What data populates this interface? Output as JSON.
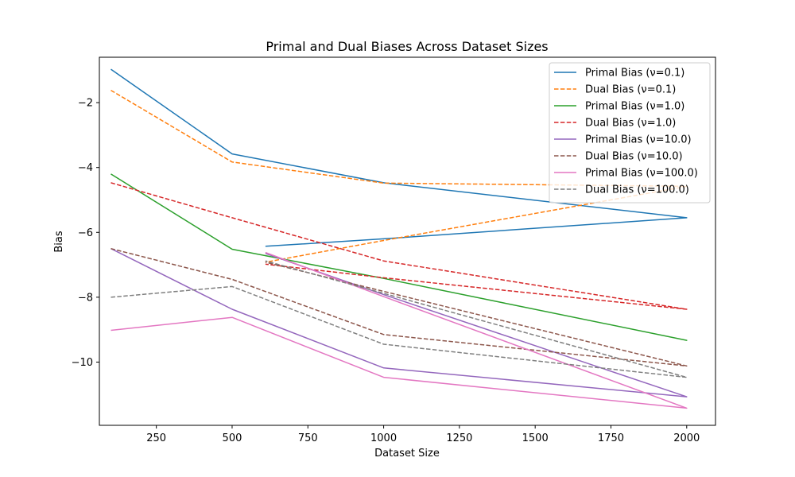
{
  "chart_data": {
    "type": "line",
    "title": "Primal and Dual Biases Across Dataset Sizes",
    "xlabel": "Dataset Size",
    "ylabel": "Bias",
    "xlim": [
      62,
      2095
    ],
    "ylim": [
      -11.95,
      -0.6
    ],
    "x_ticks": [
      250,
      500,
      750,
      1000,
      1250,
      1500,
      1750,
      2000
    ],
    "x_tick_labels": [
      "250",
      "500",
      "750",
      "1000",
      "1250",
      "1500",
      "1750",
      "2000"
    ],
    "y_ticks": [
      -10,
      -8,
      -6,
      -4,
      -2
    ],
    "y_tick_labels": [
      "−10",
      "−8",
      "−6",
      "−4",
      "−2"
    ],
    "grid": false,
    "legend_position": "top-right",
    "series": [
      {
        "name": "Primal Bias (ν=0.1)",
        "color": "#1f77b4",
        "dash": "solid",
        "points": [
          [
            100,
            -0.97
          ],
          [
            500,
            -3.58
          ],
          [
            1000,
            -4.47
          ],
          [
            2000,
            -5.55
          ],
          [
            1000,
            -6.2
          ],
          [
            610,
            -6.43
          ]
        ]
      },
      {
        "name": "Dual Bias (ν=0.1)",
        "color": "#ff7f0e",
        "dash": "dashed",
        "points": [
          [
            100,
            -1.62
          ],
          [
            500,
            -3.83
          ],
          [
            1000,
            -4.48
          ],
          [
            1700,
            -4.55
          ],
          [
            2000,
            -4.58
          ],
          [
            1000,
            -6.25
          ],
          [
            610,
            -6.92
          ]
        ]
      },
      {
        "name": "Primal Bias (ν=1.0)",
        "color": "#2ca02c",
        "dash": "solid",
        "points": [
          [
            100,
            -4.2
          ],
          [
            500,
            -6.52
          ],
          [
            1000,
            -7.42
          ],
          [
            2000,
            -9.33
          ],
          [
            1000,
            -7.42
          ],
          [
            610,
            -6.72
          ]
        ]
      },
      {
        "name": "Dual Bias (ν=1.0)",
        "color": "#d62728",
        "dash": "dashed",
        "points": [
          [
            100,
            -4.47
          ],
          [
            500,
            -5.55
          ],
          [
            1000,
            -6.88
          ],
          [
            2000,
            -8.37
          ],
          [
            1000,
            -7.4
          ],
          [
            610,
            -6.98
          ]
        ]
      },
      {
        "name": "Primal Bias (ν=10.0)",
        "color": "#9467bd",
        "dash": "solid",
        "points": [
          [
            100,
            -6.5
          ],
          [
            500,
            -8.37
          ],
          [
            1000,
            -10.18
          ],
          [
            2000,
            -11.07
          ],
          [
            1000,
            -7.92
          ],
          [
            610,
            -6.65
          ]
        ]
      },
      {
        "name": "Dual Bias (ν=10.0)",
        "color": "#8c564b",
        "dash": "dashed",
        "points": [
          [
            100,
            -6.5
          ],
          [
            500,
            -7.45
          ],
          [
            1000,
            -9.15
          ],
          [
            2000,
            -10.12
          ],
          [
            1000,
            -7.82
          ],
          [
            610,
            -6.92
          ]
        ]
      },
      {
        "name": "Primal Bias (ν=100.0)",
        "color": "#e377c2",
        "dash": "solid",
        "points": [
          [
            100,
            -9.02
          ],
          [
            500,
            -8.62
          ],
          [
            1000,
            -10.47
          ],
          [
            2000,
            -11.42
          ],
          [
            1000,
            -7.98
          ],
          [
            610,
            -6.62
          ]
        ]
      },
      {
        "name": "Dual Bias (ν=100.0)",
        "color": "#7f7f7f",
        "dash": "dashed",
        "points": [
          [
            100,
            -8.0
          ],
          [
            500,
            -7.67
          ],
          [
            1000,
            -9.45
          ],
          [
            2000,
            -10.47
          ],
          [
            1000,
            -7.88
          ],
          [
            610,
            -6.88
          ]
        ]
      }
    ]
  }
}
